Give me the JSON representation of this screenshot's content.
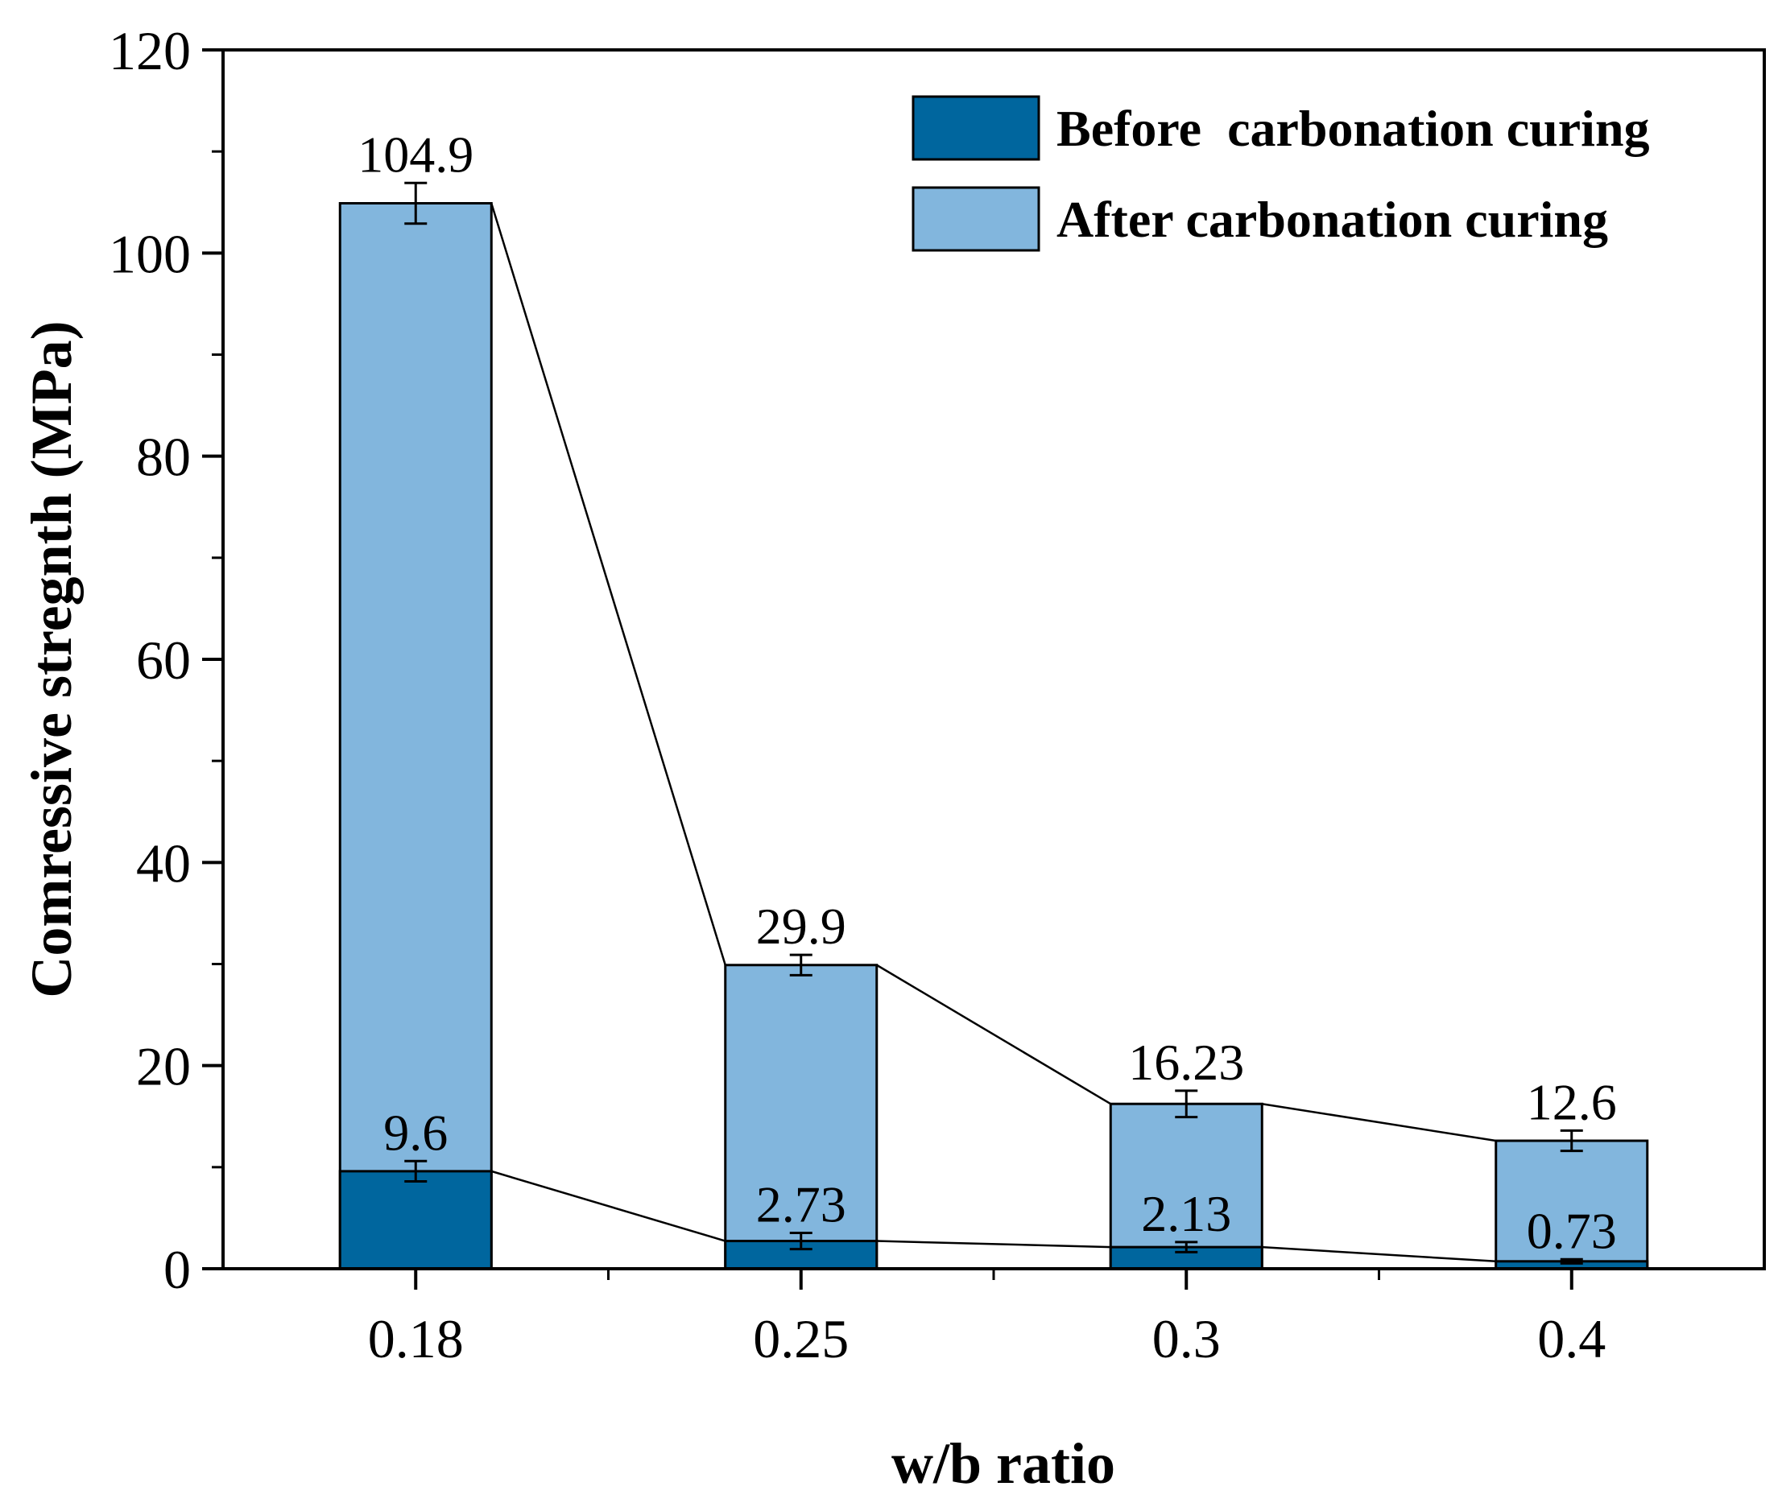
{
  "chart_data": {
    "type": "bar",
    "stacked": false,
    "overlaid": true,
    "xlabel": "w/b ratio",
    "ylabel": "Comressive stregnth (MPa)",
    "categories": [
      "0.18",
      "0.25",
      "0.3",
      "0.4"
    ],
    "ylim": [
      0,
      120
    ],
    "yticks": [
      0,
      20,
      40,
      60,
      80,
      100,
      120
    ],
    "series": [
      {
        "name": "Before  carbonation curing",
        "color": "#00669e",
        "values": [
          9.6,
          2.73,
          2.13,
          0.73
        ],
        "labels": [
          "9.6",
          "2.73",
          "2.13",
          "0.73"
        ],
        "errors": [
          1.0,
          0.8,
          0.5,
          0.2
        ]
      },
      {
        "name": "After carbonation curing",
        "color": "#82b6dd",
        "values": [
          104.9,
          29.9,
          16.23,
          12.6
        ],
        "labels": [
          "104.9",
          "29.9",
          "16.23",
          "12.6"
        ],
        "errors": [
          2.0,
          1.0,
          1.3,
          1.0
        ]
      }
    ],
    "connecting_lines": true,
    "legend_position": "top-right",
    "grid": false
  }
}
